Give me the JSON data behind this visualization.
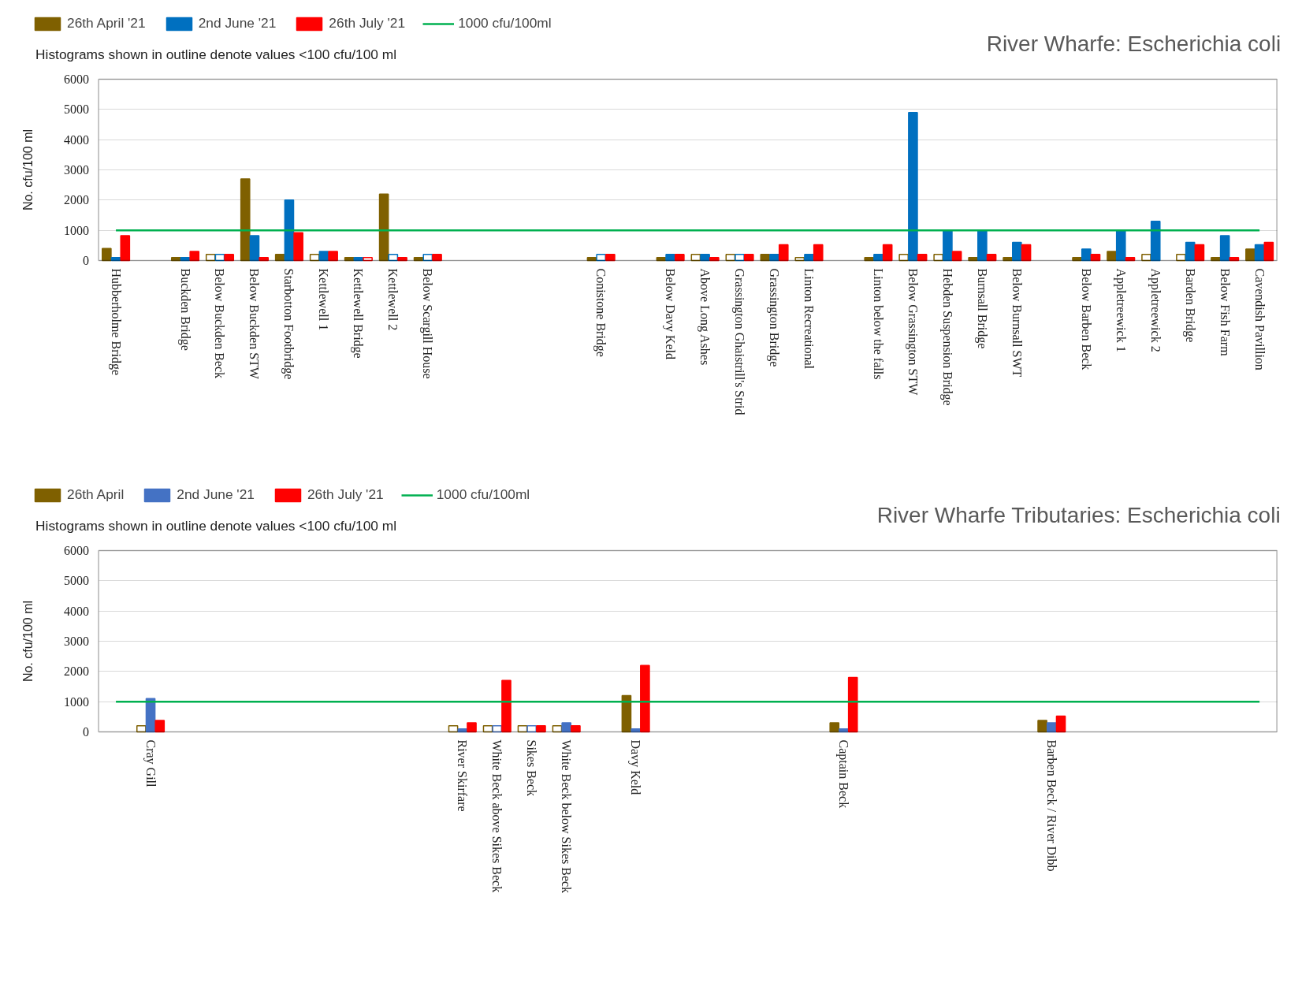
{
  "chart_data": [
    {
      "type": "bar",
      "title": "River Wharfe: Escherichia coli",
      "subtitle": "Histograms shown in outline denote values <100 cfu/100 ml",
      "ylabel": "No. cfu/100 ml",
      "categories": [
        "Hubberholme Bridge",
        null,
        "Buckden Bridge",
        "Below Buckden Beck",
        "Below Buckden STW",
        "Starbotton Footbridge",
        "Kettlewell 1",
        "Kettlewell Bridge",
        "Kettlewell 2",
        "Below Scargill House",
        null,
        null,
        null,
        null,
        "Conistone Bridge",
        null,
        "Below Davy Keld",
        "Above Long Ashes",
        "Grassington Ghaistrill's Strid",
        "Grassington Bridge",
        "Linton Recreational",
        null,
        "Linton below the falls",
        "Below Grassington STW",
        "Hebden Suspension Bridge",
        "Burnsall Bridge",
        "Below Burnsall SWT",
        null,
        "Below Barben Beck",
        "Appletreewick 1",
        "Appletreewick 2",
        "Barden Bridge",
        "Below Fish Farm",
        "Cavendish Pavillion"
      ],
      "series": [
        {
          "name": "26th April '21",
          "color": "#7f6000",
          "values": [
            400,
            null,
            100,
            200,
            2700,
            200,
            200,
            100,
            2200,
            100,
            null,
            null,
            null,
            null,
            100,
            null,
            100,
            200,
            200,
            200,
            100,
            null,
            100,
            200,
            200,
            100,
            100,
            null,
            100,
            300,
            200,
            200,
            100,
            380
          ],
          "colors": [
            "#7f6000",
            null,
            "#7f6000",
            "#ffffff",
            "#7f6000",
            "#7f6000",
            "#ffffff",
            "#7f6000",
            "#7f6000",
            "#7f6000",
            null,
            null,
            null,
            null,
            "#7f6000",
            null,
            "#7f6000",
            "#ffffff",
            "#ffffff",
            "#7f6000",
            "#ffffff",
            null,
            "#7f6000",
            "#ffffff",
            "#ffffff",
            "#7f6000",
            "#7f6000",
            null,
            "#7f6000",
            "#7f6000",
            "#ffffff",
            "#ffffff",
            "#7f6000",
            "#7f6000"
          ]
        },
        {
          "name": "2nd June '21",
          "color": "#0070c0",
          "values": [
            100,
            null,
            100,
            200,
            820,
            2000,
            300,
            100,
            200,
            200,
            null,
            null,
            null,
            null,
            200,
            null,
            200,
            200,
            200,
            200,
            200,
            null,
            200,
            4900,
            1000,
            1000,
            600,
            null,
            380,
            1000,
            1300,
            600,
            820,
            520
          ],
          "colors": [
            "#0070c0",
            null,
            "#0070c0",
            "#ffffff",
            "#0070c0",
            "#0070c0",
            "#0070c0",
            "#0070c0",
            "#ffffff",
            "#ffffff",
            null,
            null,
            null,
            null,
            "#ffffff",
            null,
            "#0070c0",
            "#0070c0",
            "#ffffff",
            "#0070c0",
            "#0070c0",
            null,
            "#0070c0",
            "#0070c0",
            "#0070c0",
            "#0070c0",
            "#0070c0",
            null,
            "#0070c0",
            "#0070c0",
            "#0070c0",
            "#0070c0",
            "#0070c0",
            "#0070c0"
          ]
        },
        {
          "name": "26th July '21",
          "color": "#ff0000",
          "values": [
            820,
            null,
            300,
            200,
            100,
            920,
            300,
            100,
            100,
            200,
            null,
            null,
            null,
            null,
            200,
            null,
            200,
            100,
            200,
            520,
            520,
            null,
            520,
            200,
            300,
            200,
            520,
            null,
            200,
            100,
            null,
            520,
            100,
            600
          ],
          "colors": [
            "#ff0000",
            null,
            "#ff0000",
            "#ff0000",
            "#ff0000",
            "#ff0000",
            "#ff0000",
            "#ffffff",
            "#ff0000",
            "#ff0000",
            null,
            null,
            null,
            null,
            "#ff0000",
            null,
            "#ff0000",
            "#ff0000",
            "#ff0000",
            "#ff0000",
            "#ff0000",
            null,
            "#ff0000",
            "#ff0000",
            "#ff0000",
            "#ff0000",
            "#ff0000",
            null,
            "#ff0000",
            "#ff0000",
            null,
            "#ff0000",
            "#ff0000",
            "#ff0000"
          ]
        }
      ],
      "ref_lines": [
        {
          "axis": "y",
          "value": 1000,
          "label": "1000 cfu/100ml",
          "color": "#00b050"
        }
      ],
      "ylim": [
        0,
        6000
      ],
      "yticks": [
        0,
        1000,
        2000,
        3000,
        4000,
        5000,
        6000
      ],
      "grid": "y",
      "legend": "top left"
    },
    {
      "type": "bar",
      "title": "River Wharfe Tributaries: Escherichia coli",
      "subtitle": "Histograms shown in outline denote values <100 cfu/100 ml",
      "ylabel": "No. cfu/100 ml",
      "categories": [
        null,
        "Cray Gill",
        null,
        null,
        null,
        null,
        null,
        null,
        null,
        null,
        "River Skirfare",
        "White Beck above Sikes Beck",
        "Sikes Beck",
        "White Beck below Sikes Beck",
        null,
        "Davy Keld",
        null,
        null,
        null,
        null,
        null,
        "Captain Beck",
        null,
        null,
        null,
        null,
        null,
        "Barben Beck / River Dibb",
        null,
        null,
        null,
        null,
        null,
        null
      ],
      "series": [
        {
          "name": "26th April",
          "color": "#7f6000",
          "values": [
            null,
            200,
            null,
            null,
            null,
            null,
            null,
            null,
            null,
            null,
            200,
            200,
            200,
            200,
            null,
            1200,
            null,
            null,
            null,
            null,
            null,
            300,
            null,
            null,
            null,
            null,
            null,
            380,
            null,
            null,
            null,
            null,
            null,
            null
          ],
          "colors": [
            null,
            "#ffffff",
            null,
            null,
            null,
            null,
            null,
            null,
            null,
            null,
            "#ffffff",
            "#ffffff",
            "#ffffff",
            "#ffffff",
            null,
            "#7f6000",
            null,
            null,
            null,
            null,
            null,
            "#7f6000",
            null,
            null,
            null,
            null,
            null,
            "#7f6000",
            null,
            null,
            null,
            null,
            null,
            null
          ]
        },
        {
          "name": "2nd June '21",
          "color": "#4472c4",
          "values": [
            null,
            1100,
            null,
            null,
            null,
            null,
            null,
            null,
            null,
            null,
            100,
            200,
            200,
            300,
            null,
            100,
            null,
            null,
            null,
            null,
            null,
            100,
            null,
            null,
            null,
            null,
            null,
            300,
            null,
            null,
            null,
            null,
            null,
            null
          ],
          "colors": [
            null,
            "#4472c4",
            null,
            null,
            null,
            null,
            null,
            null,
            null,
            null,
            "#4472c4",
            "#ffffff",
            "#ffffff",
            "#4472c4",
            null,
            "#4472c4",
            null,
            null,
            null,
            null,
            null,
            "#4472c4",
            null,
            null,
            null,
            null,
            null,
            "#4472c4",
            null,
            null,
            null,
            null,
            null,
            null
          ]
        },
        {
          "name": "26th July '21",
          "color": "#ff0000",
          "values": [
            null,
            380,
            null,
            null,
            null,
            null,
            null,
            null,
            null,
            null,
            300,
            1700,
            200,
            200,
            null,
            2200,
            null,
            null,
            null,
            null,
            null,
            1800,
            null,
            null,
            null,
            null,
            null,
            520,
            null,
            null,
            null,
            null,
            null,
            null
          ],
          "colors": [
            null,
            "#ff0000",
            null,
            null,
            null,
            null,
            null,
            null,
            null,
            null,
            "#ff0000",
            "#ff0000",
            "#ff0000",
            "#ff0000",
            null,
            "#ff0000",
            null,
            null,
            null,
            null,
            null,
            "#ff0000",
            null,
            null,
            null,
            null,
            null,
            "#ff0000",
            null,
            null,
            null,
            null,
            null,
            null
          ]
        }
      ],
      "ref_lines": [
        {
          "axis": "y",
          "value": 1000,
          "label": "1000 cfu/100ml",
          "color": "#00b050"
        }
      ],
      "ylim": [
        0,
        6000
      ],
      "yticks": [
        0,
        1000,
        2000,
        3000,
        4000,
        5000,
        6000
      ],
      "grid": "y",
      "legend": "top left"
    }
  ]
}
